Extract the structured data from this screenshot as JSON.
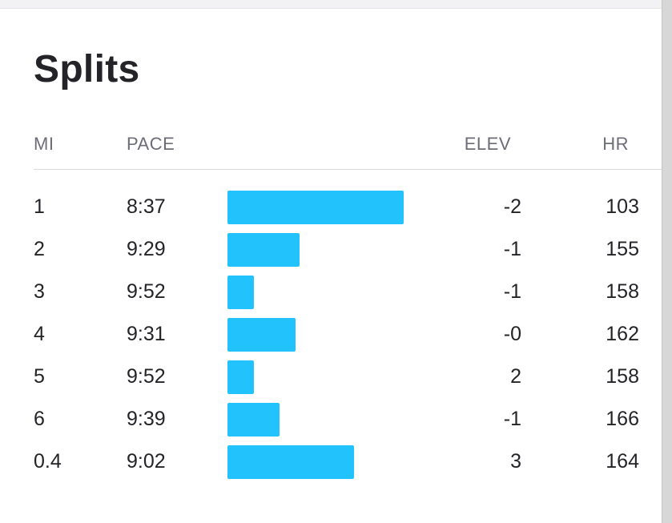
{
  "title": "Splits",
  "headers": {
    "mi": "MI",
    "pace": "PACE",
    "elev": "ELEV",
    "hr": "HR"
  },
  "bar_color": "#22c3fc",
  "pace_scale": {
    "bar_start": "10:05"
  },
  "splits": [
    {
      "mi": "1",
      "pace": "8:37",
      "elev": "-2",
      "hr": "103"
    },
    {
      "mi": "2",
      "pace": "9:29",
      "elev": "-1",
      "hr": "155"
    },
    {
      "mi": "3",
      "pace": "9:52",
      "elev": "-1",
      "hr": "158"
    },
    {
      "mi": "4",
      "pace": "9:31",
      "elev": "-0",
      "hr": "162"
    },
    {
      "mi": "5",
      "pace": "9:52",
      "elev": "2",
      "hr": "158"
    },
    {
      "mi": "6",
      "pace": "9:39",
      "elev": "-1",
      "hr": "166"
    },
    {
      "mi": "0.4",
      "pace": "9:02",
      "elev": "3",
      "hr": "164"
    }
  ]
}
